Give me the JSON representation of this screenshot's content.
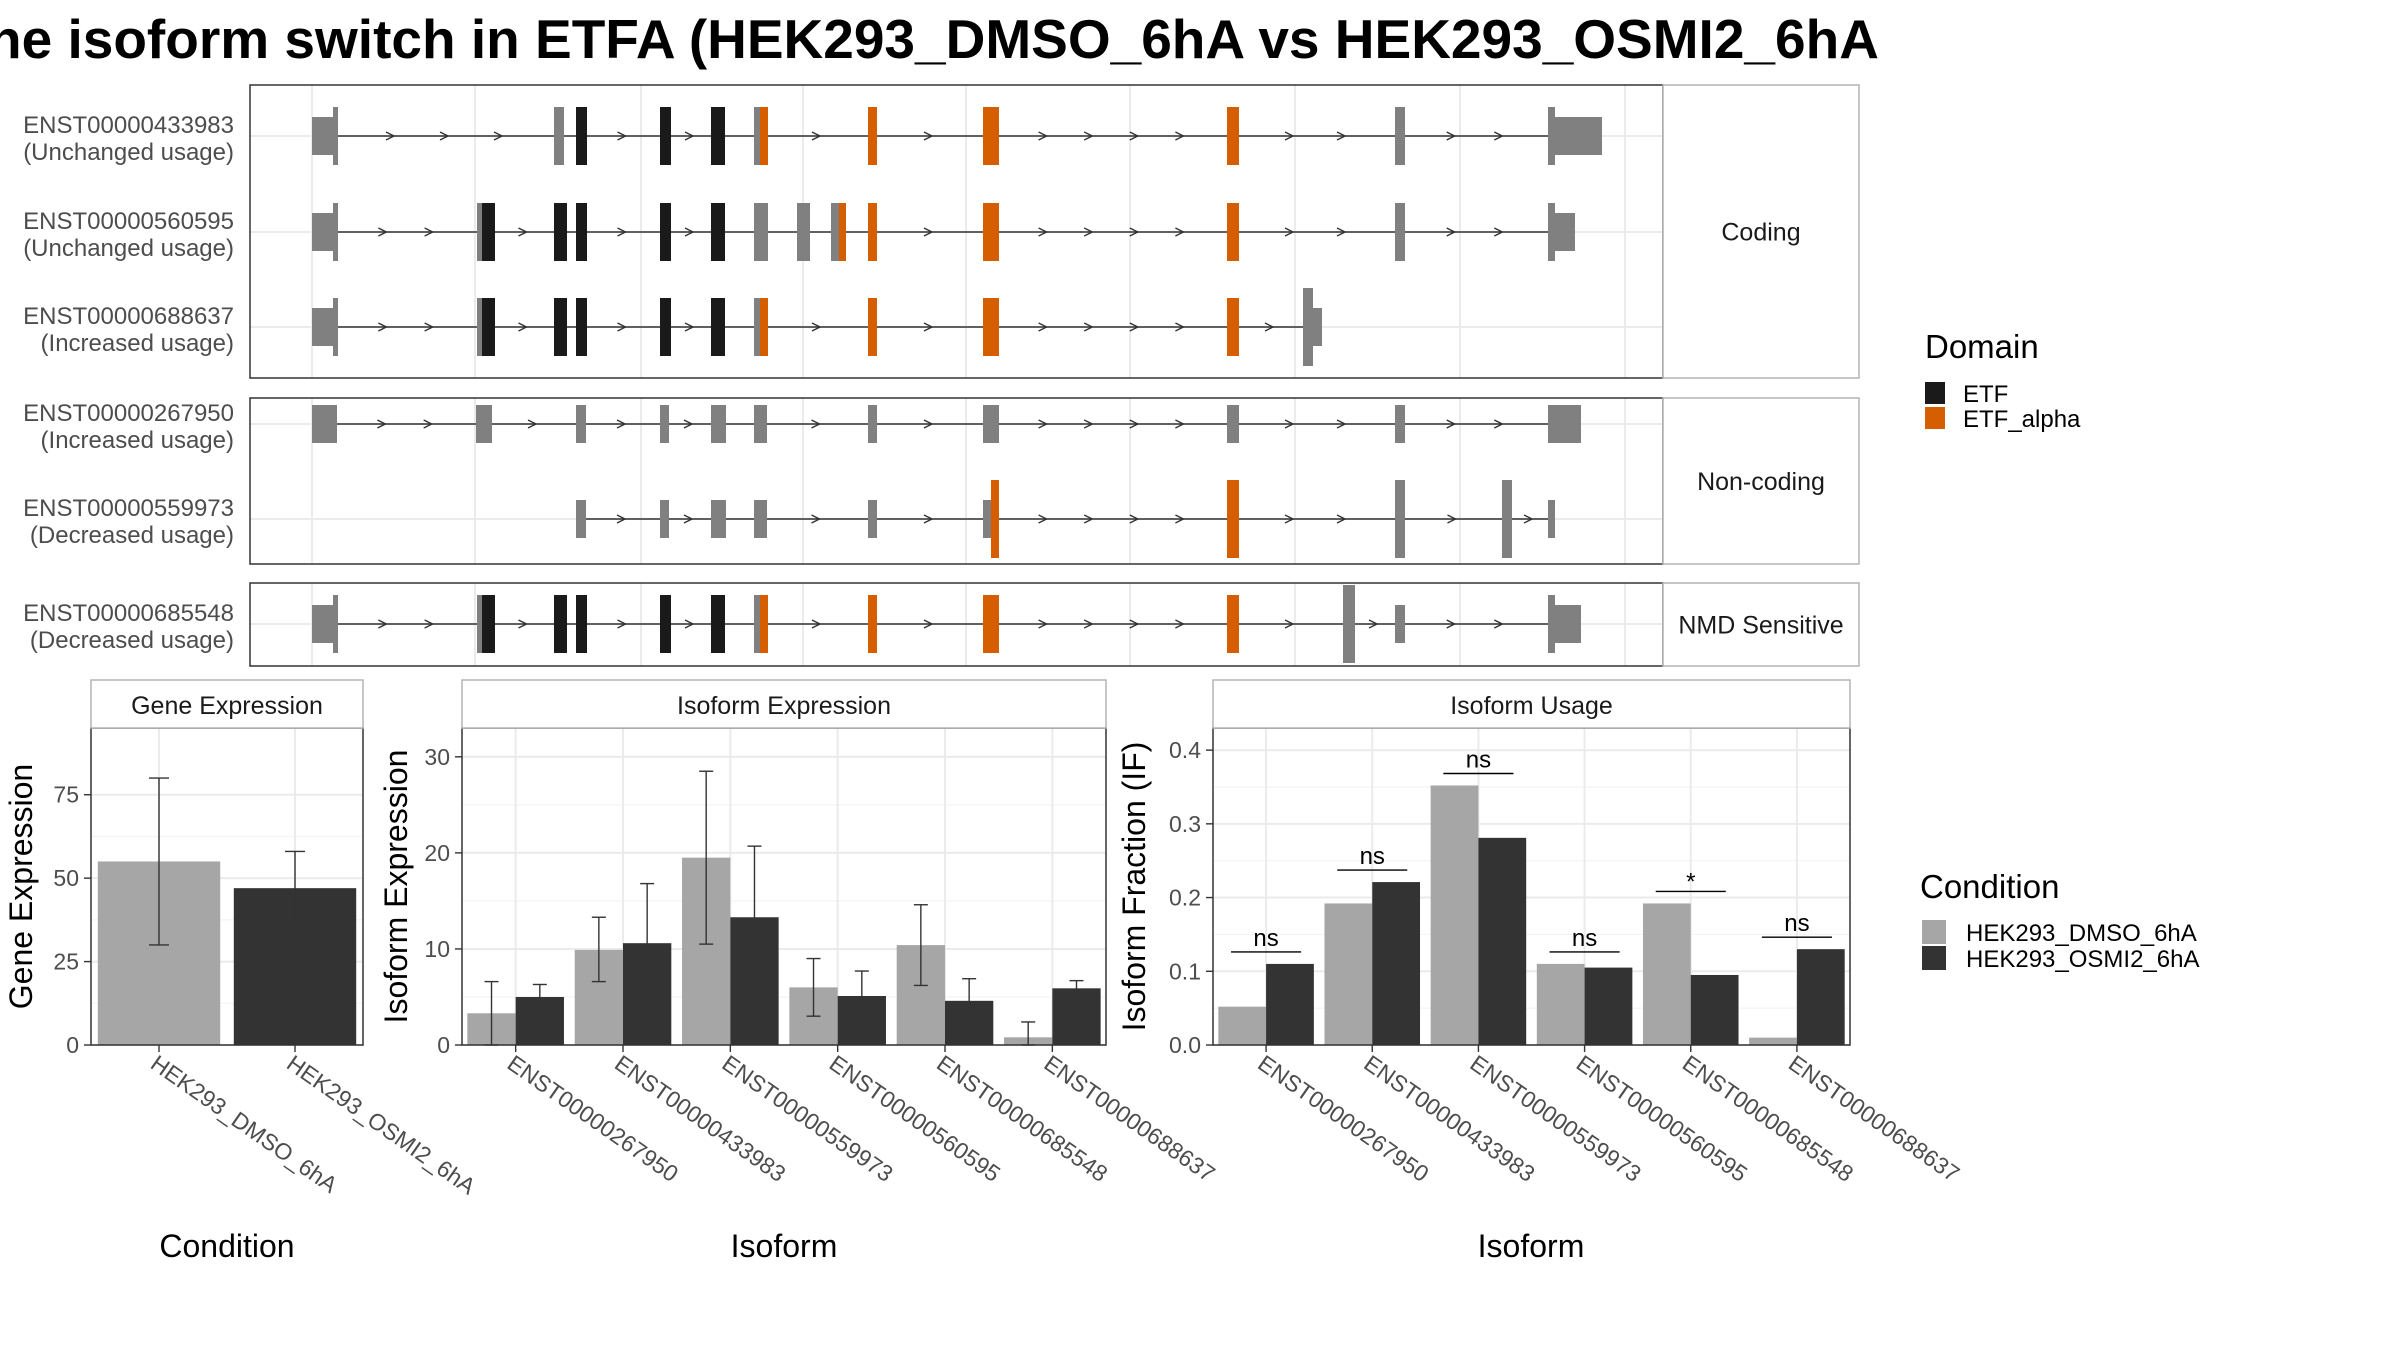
{
  "title": "he isoform switch in ETFA (HEK293_DMSO_6hA vs HEK293_OSMI2_6hA",
  "colors": {
    "etf": "#1a1a1a",
    "etf_alpha": "#d55e00",
    "exon": "#808080",
    "dmso": "#a6a6a6",
    "osmi": "#333333"
  },
  "transcript_panels": [
    {
      "facet": "Coding",
      "tracks": [
        {
          "id": "ENST00000433983",
          "status": "(Unchanged usage)"
        },
        {
          "id": "ENST00000560595",
          "status": "(Unchanged usage)"
        },
        {
          "id": "ENST00000688637",
          "status": "(Increased usage)"
        }
      ]
    },
    {
      "facet": "Non-coding",
      "tracks": [
        {
          "id": "ENST00000267950",
          "status": "(Increased usage)"
        },
        {
          "id": "ENST00000559973",
          "status": "(Decreased usage)"
        }
      ]
    },
    {
      "facet": "NMD Sensitive",
      "tracks": [
        {
          "id": "ENST00000685548",
          "status": "(Decreased usage)"
        }
      ]
    }
  ],
  "domain_legend": {
    "title": "Domain",
    "items": [
      "ETF",
      "ETF_alpha"
    ]
  },
  "condition_legend": {
    "title": "Condition",
    "items": [
      "HEK293_DMSO_6hA",
      "HEK293_OSMI2_6hA"
    ]
  },
  "chart_data": [
    {
      "type": "bar",
      "title": "Gene Expression",
      "xlabel": "Condition",
      "ylabel": "Gene Expression",
      "ylim": [
        0,
        95
      ],
      "yticks": [
        0,
        25,
        50,
        75
      ],
      "categories": [
        "HEK293_DMSO_6hA",
        "HEK293_OSMI2_6hA"
      ],
      "values": [
        55,
        47
      ],
      "error": [
        [
          30,
          80
        ],
        [
          36,
          58
        ]
      ]
    },
    {
      "type": "bar",
      "title": "Isoform Expression",
      "xlabel": "Isoform",
      "ylabel": "Isoform Expression",
      "ylim": [
        0,
        33
      ],
      "yticks": [
        0,
        10,
        20,
        30
      ],
      "categories": [
        "ENST00000267950",
        "ENST00000433983",
        "ENST00000559973",
        "ENST00000560595",
        "ENST00000685548",
        "ENST00000688637"
      ],
      "series": [
        {
          "name": "HEK293_DMSO_6hA",
          "values": [
            3.3,
            9.9,
            19.5,
            6.0,
            10.4,
            0.8
          ],
          "error": [
            [
              0,
              6.6
            ],
            [
              6.6,
              13.3
            ],
            [
              10.5,
              28.5
            ],
            [
              3.0,
              9.0
            ],
            [
              6.2,
              14.6
            ],
            [
              0,
              2.4
            ]
          ]
        },
        {
          "name": "HEK293_OSMI2_6hA",
          "values": [
            5.0,
            10.6,
            13.3,
            5.1,
            4.6,
            5.9
          ],
          "error": [
            [
              3.8,
              6.3
            ],
            [
              4.5,
              16.8
            ],
            [
              6.0,
              20.7
            ],
            [
              2.5,
              7.7
            ],
            [
              2.3,
              6.9
            ],
            [
              5.0,
              6.7
            ]
          ]
        }
      ]
    },
    {
      "type": "bar",
      "title": "Isoform Usage",
      "xlabel": "Isoform",
      "ylabel": "Isoform Fraction (IF)",
      "ylim": [
        0,
        0.43
      ],
      "yticks": [
        0.0,
        0.1,
        0.2,
        0.3,
        0.4
      ],
      "categories": [
        "ENST00000267950",
        "ENST00000433983",
        "ENST00000559973",
        "ENST00000560595",
        "ENST00000685548",
        "ENST00000688637"
      ],
      "series": [
        {
          "name": "HEK293_DMSO_6hA",
          "values": [
            0.052,
            0.192,
            0.352,
            0.11,
            0.192,
            0.01
          ]
        },
        {
          "name": "HEK293_OSMI2_6hA",
          "values": [
            0.11,
            0.221,
            0.281,
            0.105,
            0.095,
            0.13
          ]
        }
      ],
      "significance": [
        "ns",
        "ns",
        "ns",
        "ns",
        "*",
        "ns"
      ]
    }
  ]
}
